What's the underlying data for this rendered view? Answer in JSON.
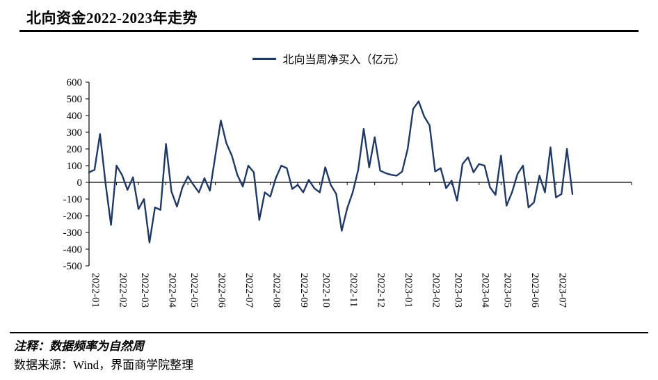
{
  "page": {
    "title": "北向资金2022-2023年走势",
    "note": "注释：数据频率为自然周",
    "source": "数据来源：Wind，界面商学院整理"
  },
  "chart_data": {
    "type": "line",
    "title": "北向资金2022-2023年走势",
    "legend": [
      "北向当周净买入（亿元）"
    ],
    "legend_position": "top",
    "xlabel": "",
    "ylabel": "",
    "ylim": [
      -500,
      600
    ],
    "ytick_interval": 100,
    "yticks": [
      600,
      500,
      400,
      300,
      200,
      100,
      0,
      -100,
      -200,
      -300,
      -400,
      -500
    ],
    "grid": false,
    "line_color": "#1f3864",
    "axis_color": "#000000",
    "x_tick_labels": [
      "2022-01",
      "2022-02",
      "2022-03",
      "2022-04",
      "2022-05",
      "2022-06",
      "2022-07",
      "2022-08",
      "2022-09",
      "2022-10",
      "2022-11",
      "2022-12",
      "2023-01",
      "2023-02",
      "2023-03",
      "2023-04",
      "2023-05",
      "2023-06",
      "2023-07"
    ],
    "month_start_weeks": [
      0,
      5,
      9,
      14,
      18,
      23,
      28,
      33,
      38,
      42,
      47,
      52,
      57,
      62,
      66,
      71,
      75,
      80,
      85
    ],
    "series": [
      {
        "name": "北向当周净买入（亿元）",
        "values": [
          60,
          75,
          290,
          -5,
          -255,
          100,
          45,
          -45,
          30,
          -160,
          -100,
          -360,
          -150,
          -165,
          230,
          -55,
          -145,
          -30,
          35,
          -15,
          -60,
          25,
          -50,
          160,
          370,
          235,
          160,
          45,
          -25,
          100,
          60,
          -225,
          -60,
          -85,
          25,
          100,
          85,
          -40,
          -15,
          -60,
          15,
          -35,
          -60,
          90,
          -15,
          -70,
          -290,
          -155,
          -60,
          75,
          320,
          90,
          270,
          70,
          55,
          45,
          40,
          65,
          200,
          440,
          485,
          395,
          340,
          65,
          85,
          -35,
          10,
          -110,
          110,
          150,
          60,
          110,
          100,
          -30,
          -75,
          160,
          -140,
          -60,
          50,
          100,
          -150,
          -120,
          40,
          -60,
          210,
          -90,
          -70,
          200,
          -70
        ]
      }
    ]
  }
}
